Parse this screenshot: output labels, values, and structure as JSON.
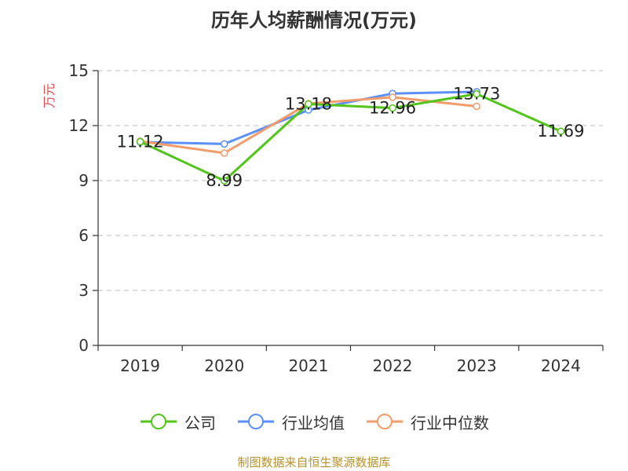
{
  "chart_data": {
    "type": "line",
    "title": "历年人均薪酬情况(万元)",
    "ylabel": "万元",
    "xlabel": "",
    "categories": [
      "2019",
      "2020",
      "2021",
      "2022",
      "2023",
      "2024"
    ],
    "ylim": [
      0,
      15
    ],
    "yticks": [
      0,
      3,
      6,
      9,
      12,
      15
    ],
    "grid": true,
    "legend_position": "bottom",
    "series": [
      {
        "name": "公司",
        "color": "#52c41a",
        "values": [
          11.12,
          8.99,
          13.18,
          12.96,
          13.73,
          11.69
        ],
        "labels": [
          "11.12",
          "8.99",
          "13.18",
          "12.96",
          "13.73",
          "11.69"
        ]
      },
      {
        "name": "行业均值",
        "color": "#5b8ff9",
        "values": [
          11.1,
          11.0,
          12.85,
          13.75,
          13.85,
          null
        ]
      },
      {
        "name": "行业中位数",
        "color": "#f39c6b",
        "values": [
          11.15,
          10.5,
          13.2,
          13.55,
          13.05,
          null
        ]
      }
    ]
  },
  "footer": {
    "source": "制图数据来自恒生聚源数据库"
  },
  "colors": {
    "ylabel": "#e05050",
    "axis": "#333333",
    "grid": "#cccccc"
  }
}
